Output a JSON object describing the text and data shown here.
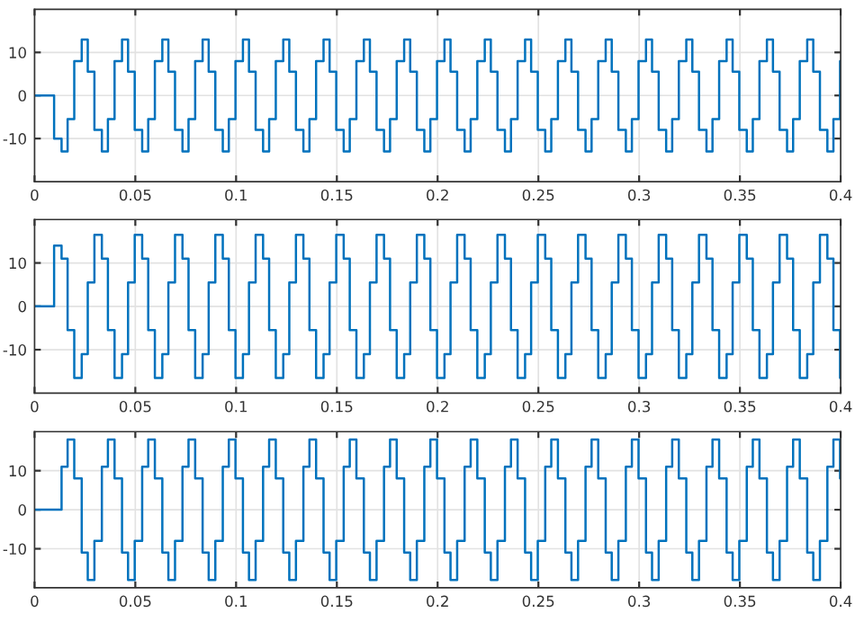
{
  "chart_data": [
    {
      "type": "step",
      "x": [
        0,
        0.0097,
        0.0134,
        0.0164,
        0.0197,
        0.0234,
        0.0264,
        0.0297,
        0.0334,
        0.0364,
        0.0397,
        0.0434,
        0.0464,
        0.0497,
        0.0534,
        0.0564,
        0.0597,
        0.0634,
        0.0664,
        0.0697,
        0.0734,
        0.0764,
        0.0797,
        0.0834,
        0.0864,
        0.0897,
        0.0934,
        0.0964,
        0.0997,
        0.1034,
        0.1064,
        0.1097,
        0.1134,
        0.1164,
        0.1197,
        0.1234,
        0.1264,
        0.1297,
        0.1334,
        0.1364,
        0.1397,
        0.1434,
        0.1464,
        0.1497,
        0.1534,
        0.1564,
        0.1597,
        0.1634,
        0.1664,
        0.1697,
        0.1734,
        0.1764,
        0.1797,
        0.1834,
        0.1864,
        0.1897,
        0.1934,
        0.1964,
        0.1997,
        0.2034,
        0.2064,
        0.2097,
        0.2134,
        0.2164,
        0.2197,
        0.2234,
        0.2264,
        0.2297,
        0.2334,
        0.2364,
        0.2397,
        0.2434,
        0.2464,
        0.2497,
        0.2534,
        0.2564,
        0.2597,
        0.2634,
        0.2664,
        0.2697,
        0.2734,
        0.2764,
        0.2797,
        0.2834,
        0.2864,
        0.2897,
        0.2934,
        0.2964,
        0.2997,
        0.3034,
        0.3064,
        0.3097,
        0.3134,
        0.3164,
        0.3197,
        0.3234,
        0.3264,
        0.3297,
        0.3334,
        0.3364,
        0.3397,
        0.3434,
        0.3464,
        0.3497,
        0.3534,
        0.3564,
        0.3597,
        0.3634,
        0.3664,
        0.3697,
        0.3734,
        0.3764,
        0.3797,
        0.3834,
        0.3864,
        0.3897,
        0.3934,
        0.3964,
        0.3997,
        0.4
      ],
      "series": [
        {
          "color": "#0072bd",
          "values": [
            0,
            -10,
            -13,
            -5.5,
            8,
            13,
            5.5,
            -8,
            -13,
            -5.5,
            8,
            13,
            5.5,
            -8,
            -13,
            -5.5,
            8,
            13,
            5.5,
            -8,
            -13,
            -5.5,
            8,
            13,
            5.5,
            -8,
            -13,
            -5.5,
            8,
            13,
            5.5,
            -8,
            -13,
            -5.5,
            8,
            13,
            5.5,
            -8,
            -13,
            -5.5,
            8,
            13,
            5.5,
            -8,
            -13,
            -5.5,
            8,
            13,
            5.5,
            -8,
            -13,
            -5.5,
            8,
            13,
            5.5,
            -8,
            -13,
            -5.5,
            8,
            13,
            5.5,
            -8,
            -13,
            -5.5,
            8,
            13,
            5.5,
            -8,
            -13,
            -5.5,
            8,
            13,
            5.5,
            -8,
            -13,
            -5.5,
            8,
            13,
            5.5,
            -8,
            -13,
            -5.5,
            8,
            13,
            5.5,
            -8,
            -13,
            -5.5,
            8,
            13,
            5.5,
            -8,
            -13,
            -5.5,
            8,
            13,
            5.5,
            -8,
            -13,
            -5.5,
            8,
            13,
            5.5,
            -8,
            -13,
            -5.5,
            8,
            13,
            5.5,
            -8,
            -13,
            -5.5,
            8,
            13,
            5.5,
            -8,
            -13,
            -5.5,
            8,
            8
          ]
        }
      ],
      "xlim": [
        0,
        0.4
      ],
      "xticks": [
        0,
        0.05,
        0.1,
        0.15,
        0.2,
        0.25,
        0.3,
        0.35,
        0.4
      ],
      "ylim": [
        -20,
        20
      ],
      "yticks": [
        -10,
        0,
        10
      ],
      "grid": true
    },
    {
      "type": "step",
      "x": [
        0,
        0.0097,
        0.0134,
        0.0164,
        0.0197,
        0.0234,
        0.0264,
        0.0297,
        0.0334,
        0.0364,
        0.0397,
        0.0434,
        0.0464,
        0.0497,
        0.0534,
        0.0564,
        0.0597,
        0.0634,
        0.0664,
        0.0697,
        0.0734,
        0.0764,
        0.0797,
        0.0834,
        0.0864,
        0.0897,
        0.0934,
        0.0964,
        0.0997,
        0.1034,
        0.1064,
        0.1097,
        0.1134,
        0.1164,
        0.1197,
        0.1234,
        0.1264,
        0.1297,
        0.1334,
        0.1364,
        0.1397,
        0.1434,
        0.1464,
        0.1497,
        0.1534,
        0.1564,
        0.1597,
        0.1634,
        0.1664,
        0.1697,
        0.1734,
        0.1764,
        0.1797,
        0.1834,
        0.1864,
        0.1897,
        0.1934,
        0.1964,
        0.1997,
        0.2034,
        0.2064,
        0.2097,
        0.2134,
        0.2164,
        0.2197,
        0.2234,
        0.2264,
        0.2297,
        0.2334,
        0.2364,
        0.2397,
        0.2434,
        0.2464,
        0.2497,
        0.2534,
        0.2564,
        0.2597,
        0.2634,
        0.2664,
        0.2697,
        0.2734,
        0.2764,
        0.2797,
        0.2834,
        0.2864,
        0.2897,
        0.2934,
        0.2964,
        0.2997,
        0.3034,
        0.3064,
        0.3097,
        0.3134,
        0.3164,
        0.3197,
        0.3234,
        0.3264,
        0.3297,
        0.3334,
        0.3364,
        0.3397,
        0.3434,
        0.3464,
        0.3497,
        0.3534,
        0.3564,
        0.3597,
        0.3634,
        0.3664,
        0.3697,
        0.3734,
        0.3764,
        0.3797,
        0.3834,
        0.3864,
        0.3897,
        0.3934,
        0.3964,
        0.3997,
        0.4
      ],
      "series": [
        {
          "color": "#0072bd",
          "values": [
            0,
            14,
            11,
            -5.5,
            -16.5,
            -11,
            5.5,
            16.5,
            11,
            -5.5,
            -16.5,
            -11,
            5.5,
            16.5,
            11,
            -5.5,
            -16.5,
            -11,
            5.5,
            16.5,
            11,
            -5.5,
            -16.5,
            -11,
            5.5,
            16.5,
            11,
            -5.5,
            -16.5,
            -11,
            5.5,
            16.5,
            11,
            -5.5,
            -16.5,
            -11,
            5.5,
            16.5,
            11,
            -5.5,
            -16.5,
            -11,
            5.5,
            16.5,
            11,
            -5.5,
            -16.5,
            -11,
            5.5,
            16.5,
            11,
            -5.5,
            -16.5,
            -11,
            5.5,
            16.5,
            11,
            -5.5,
            -16.5,
            -11,
            5.5,
            16.5,
            11,
            -5.5,
            -16.5,
            -11,
            5.5,
            16.5,
            11,
            -5.5,
            -16.5,
            -11,
            5.5,
            16.5,
            11,
            -5.5,
            -16.5,
            -11,
            5.5,
            16.5,
            11,
            -5.5,
            -16.5,
            -11,
            5.5,
            16.5,
            11,
            -5.5,
            -16.5,
            -11,
            5.5,
            16.5,
            11,
            -5.5,
            -16.5,
            -11,
            5.5,
            16.5,
            11,
            -5.5,
            -16.5,
            -11,
            5.5,
            16.5,
            11,
            -5.5,
            -16.5,
            -11,
            5.5,
            16.5,
            11,
            -5.5,
            -16.5,
            -11,
            5.5,
            16.5,
            11,
            -5.5,
            -16.5,
            -16.5
          ]
        }
      ],
      "xlim": [
        0,
        0.4
      ],
      "xticks": [
        0,
        0.05,
        0.1,
        0.15,
        0.2,
        0.25,
        0.3,
        0.35,
        0.4
      ],
      "ylim": [
        -20,
        20
      ],
      "yticks": [
        -10,
        0,
        10
      ],
      "grid": true
    },
    {
      "type": "step",
      "x": [
        0,
        0.0097,
        0.0134,
        0.0164,
        0.0197,
        0.0234,
        0.0264,
        0.0297,
        0.0334,
        0.0364,
        0.0397,
        0.0434,
        0.0464,
        0.0497,
        0.0534,
        0.0564,
        0.0597,
        0.0634,
        0.0664,
        0.0697,
        0.0734,
        0.0764,
        0.0797,
        0.0834,
        0.0864,
        0.0897,
        0.0934,
        0.0964,
        0.0997,
        0.1034,
        0.1064,
        0.1097,
        0.1134,
        0.1164,
        0.1197,
        0.1234,
        0.1264,
        0.1297,
        0.1334,
        0.1364,
        0.1397,
        0.1434,
        0.1464,
        0.1497,
        0.1534,
        0.1564,
        0.1597,
        0.1634,
        0.1664,
        0.1697,
        0.1734,
        0.1764,
        0.1797,
        0.1834,
        0.1864,
        0.1897,
        0.1934,
        0.1964,
        0.1997,
        0.2034,
        0.2064,
        0.2097,
        0.2134,
        0.2164,
        0.2197,
        0.2234,
        0.2264,
        0.2297,
        0.2334,
        0.2364,
        0.2397,
        0.2434,
        0.2464,
        0.2497,
        0.2534,
        0.2564,
        0.2597,
        0.2634,
        0.2664,
        0.2697,
        0.2734,
        0.2764,
        0.2797,
        0.2834,
        0.2864,
        0.2897,
        0.2934,
        0.2964,
        0.2997,
        0.3034,
        0.3064,
        0.3097,
        0.3134,
        0.3164,
        0.3197,
        0.3234,
        0.3264,
        0.3297,
        0.3334,
        0.3364,
        0.3397,
        0.3434,
        0.3464,
        0.3497,
        0.3534,
        0.3564,
        0.3597,
        0.3634,
        0.3664,
        0.3697,
        0.3734,
        0.3764,
        0.3797,
        0.3834,
        0.3864,
        0.3897,
        0.3934,
        0.3964,
        0.3997,
        0.4
      ],
      "series": [
        {
          "color": "#0072bd",
          "values": [
            0,
            0,
            11,
            18,
            8,
            -11,
            -18,
            -8,
            11,
            18,
            8,
            -11,
            -18,
            -8,
            11,
            18,
            8,
            -11,
            -18,
            -8,
            11,
            18,
            8,
            -11,
            -18,
            -8,
            11,
            18,
            8,
            -11,
            -18,
            -8,
            11,
            18,
            8,
            -11,
            -18,
            -8,
            11,
            18,
            8,
            -11,
            -18,
            -8,
            11,
            18,
            8,
            -11,
            -18,
            -8,
            11,
            18,
            8,
            -11,
            -18,
            -8,
            11,
            18,
            8,
            -11,
            -18,
            -8,
            11,
            18,
            8,
            -11,
            -18,
            -8,
            11,
            18,
            8,
            -11,
            -18,
            -8,
            11,
            18,
            8,
            -11,
            -18,
            -8,
            11,
            18,
            8,
            -11,
            -18,
            -8,
            11,
            18,
            8,
            -11,
            -18,
            -8,
            11,
            18,
            8,
            -11,
            -18,
            -8,
            11,
            18,
            8,
            -11,
            -18,
            -8,
            11,
            18,
            8,
            -11,
            -18,
            -8,
            11,
            18,
            8,
            -11,
            -18,
            -8,
            11,
            18,
            8,
            8
          ]
        }
      ],
      "xlim": [
        0,
        0.4
      ],
      "xticks": [
        0,
        0.05,
        0.1,
        0.15,
        0.2,
        0.25,
        0.3,
        0.35,
        0.4
      ],
      "ylim": [
        -20,
        20
      ],
      "yticks": [
        -10,
        0,
        10
      ],
      "grid": true
    }
  ]
}
